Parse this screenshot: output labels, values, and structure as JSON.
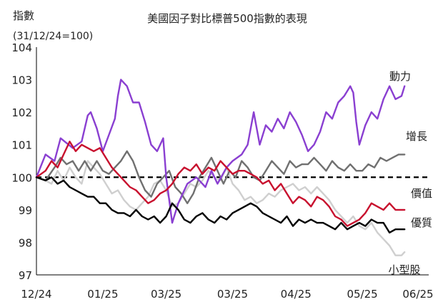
{
  "chart_data": {
    "type": "line",
    "title": "美國因子對比標普500指數的表現",
    "ylabel": "指數",
    "ylabel_sub": "(31/12/24=100)",
    "ylim": [
      97,
      104
    ],
    "yticks": [
      "97",
      "98",
      "99",
      "100",
      "101",
      "102",
      "103",
      "104"
    ],
    "x_range": [
      0,
      130
    ],
    "xticks": [
      {
        "label": "12/24",
        "x": 0
      },
      {
        "label": "01/25",
        "x": 22
      },
      {
        "label": "03/25",
        "x": 43
      },
      {
        "label": "03/25",
        "x": 65
      },
      {
        "label": "04/25",
        "x": 86
      },
      {
        "label": "05/25",
        "x": 108
      },
      {
        "label": "06/25",
        "x": 130
      }
    ],
    "reference_line": {
      "y": 100,
      "style": "dashed",
      "color": "#000000"
    },
    "grid": false,
    "series": [
      {
        "name": "動力",
        "color": "#8a3fd1",
        "points": [
          [
            0,
            100
          ],
          [
            3,
            100.7
          ],
          [
            6,
            100.5
          ],
          [
            8,
            101.2
          ],
          [
            12,
            100.9
          ],
          [
            15,
            101.1
          ],
          [
            17,
            101.9
          ],
          [
            18,
            102
          ],
          [
            20,
            101.5
          ],
          [
            22,
            100.8
          ],
          [
            24,
            101.3
          ],
          [
            26,
            101.8
          ],
          [
            27,
            102.5
          ],
          [
            28,
            103
          ],
          [
            30,
            102.8
          ],
          [
            32,
            102.3
          ],
          [
            34,
            102.3
          ],
          [
            36,
            101.7
          ],
          [
            38,
            101
          ],
          [
            40,
            100.8
          ],
          [
            42,
            101.2
          ],
          [
            43,
            100
          ],
          [
            45,
            98.6
          ],
          [
            47,
            99.2
          ],
          [
            50,
            99.8
          ],
          [
            53,
            100
          ],
          [
            56,
            99.7
          ],
          [
            58,
            100.2
          ],
          [
            60,
            99.8
          ],
          [
            63,
            100.3
          ],
          [
            65,
            100.5
          ],
          [
            68,
            100.7
          ],
          [
            70,
            101
          ],
          [
            72,
            102
          ],
          [
            74,
            101
          ],
          [
            76,
            101.6
          ],
          [
            78,
            101.4
          ],
          [
            80,
            101.8
          ],
          [
            82,
            101.5
          ],
          [
            84,
            102
          ],
          [
            86,
            101.7
          ],
          [
            88,
            101.3
          ],
          [
            90,
            100.8
          ],
          [
            92,
            101
          ],
          [
            94,
            101.4
          ],
          [
            96,
            102
          ],
          [
            98,
            101.8
          ],
          [
            100,
            102.3
          ],
          [
            102,
            102.5
          ],
          [
            104,
            102.8
          ],
          [
            105,
            102.6
          ],
          [
            106,
            101.7
          ],
          [
            107,
            101
          ],
          [
            109,
            101.6
          ],
          [
            111,
            102
          ],
          [
            113,
            101.8
          ],
          [
            115,
            102.4
          ],
          [
            117,
            102.8
          ],
          [
            119,
            102.4
          ],
          [
            121,
            102.5
          ],
          [
            122,
            102.8
          ]
        ]
      },
      {
        "name": "增長",
        "color": "#707070",
        "points": [
          [
            0,
            100
          ],
          [
            3,
            99.9
          ],
          [
            6,
            100.3
          ],
          [
            8,
            100.6
          ],
          [
            10,
            100.4
          ],
          [
            12,
            100.5
          ],
          [
            14,
            100.2
          ],
          [
            16,
            100.5
          ],
          [
            18,
            100.2
          ],
          [
            20,
            100.5
          ],
          [
            22,
            100.2
          ],
          [
            24,
            100.1
          ],
          [
            26,
            100.3
          ],
          [
            28,
            100.5
          ],
          [
            30,
            100.8
          ],
          [
            32,
            100.5
          ],
          [
            34,
            100
          ],
          [
            36,
            99.6
          ],
          [
            38,
            99.4
          ],
          [
            40,
            99.8
          ],
          [
            42,
            100
          ],
          [
            44,
            100.2
          ],
          [
            46,
            99.7
          ],
          [
            48,
            99.5
          ],
          [
            50,
            99.2
          ],
          [
            52,
            99.5
          ],
          [
            54,
            100
          ],
          [
            56,
            100.3
          ],
          [
            58,
            100.6
          ],
          [
            60,
            100.2
          ],
          [
            62,
            99.8
          ],
          [
            64,
            100.2
          ],
          [
            66,
            100
          ],
          [
            68,
            100.5
          ],
          [
            70,
            100.3
          ],
          [
            72,
            100
          ],
          [
            74,
            99.9
          ],
          [
            76,
            100.2
          ],
          [
            78,
            100.5
          ],
          [
            80,
            100.3
          ],
          [
            82,
            100.1
          ],
          [
            84,
            100.5
          ],
          [
            86,
            100.3
          ],
          [
            88,
            100.4
          ],
          [
            90,
            100.4
          ],
          [
            92,
            100.6
          ],
          [
            94,
            100.4
          ],
          [
            96,
            100.2
          ],
          [
            98,
            100.5
          ],
          [
            100,
            100.3
          ],
          [
            102,
            100.2
          ],
          [
            104,
            100.4
          ],
          [
            106,
            100.2
          ],
          [
            108,
            100.2
          ],
          [
            110,
            100.4
          ],
          [
            112,
            100.3
          ],
          [
            114,
            100.6
          ],
          [
            116,
            100.5
          ],
          [
            118,
            100.6
          ],
          [
            120,
            100.7
          ],
          [
            122,
            100.7
          ]
        ]
      },
      {
        "name": "價值",
        "color": "#c8102e",
        "points": [
          [
            0,
            100
          ],
          [
            3,
            100.2
          ],
          [
            5,
            100.5
          ],
          [
            7,
            100.3
          ],
          [
            9,
            100.7
          ],
          [
            11,
            101.1
          ],
          [
            13,
            100.8
          ],
          [
            15,
            101
          ],
          [
            17,
            100.9
          ],
          [
            19,
            100.8
          ],
          [
            21,
            100.9
          ],
          [
            23,
            100.6
          ],
          [
            25,
            100.3
          ],
          [
            27,
            100.1
          ],
          [
            29,
            99.9
          ],
          [
            31,
            99.7
          ],
          [
            33,
            99.6
          ],
          [
            35,
            99.4
          ],
          [
            37,
            99.2
          ],
          [
            39,
            99.3
          ],
          [
            41,
            99.5
          ],
          [
            43,
            99.6
          ],
          [
            45,
            99.8
          ],
          [
            47,
            100.1
          ],
          [
            49,
            100.3
          ],
          [
            51,
            100.2
          ],
          [
            53,
            100.4
          ],
          [
            55,
            100.1
          ],
          [
            57,
            100.3
          ],
          [
            59,
            100.2
          ],
          [
            61,
            100.5
          ],
          [
            63,
            100.3
          ],
          [
            65,
            100.1
          ],
          [
            67,
            100.2
          ],
          [
            69,
            100.2
          ],
          [
            71,
            100.1
          ],
          [
            73,
            100
          ],
          [
            75,
            99.8
          ],
          [
            77,
            99.9
          ],
          [
            79,
            99.6
          ],
          [
            81,
            99.8
          ],
          [
            83,
            99.5
          ],
          [
            85,
            99.2
          ],
          [
            87,
            99.4
          ],
          [
            89,
            99.3
          ],
          [
            91,
            99.1
          ],
          [
            93,
            99.4
          ],
          [
            95,
            99.3
          ],
          [
            97,
            99.1
          ],
          [
            99,
            98.8
          ],
          [
            101,
            98.7
          ],
          [
            103,
            98.5
          ],
          [
            105,
            98.6
          ],
          [
            107,
            98.7
          ],
          [
            109,
            98.9
          ],
          [
            111,
            99.2
          ],
          [
            113,
            99.1
          ],
          [
            115,
            99
          ],
          [
            117,
            99.2
          ],
          [
            119,
            99
          ],
          [
            121,
            99
          ],
          [
            122,
            99
          ]
        ]
      },
      {
        "name": "優質",
        "color": "#000000",
        "points": [
          [
            0,
            100
          ],
          [
            3,
            99.9
          ],
          [
            5,
            100
          ],
          [
            7,
            99.8
          ],
          [
            9,
            99.9
          ],
          [
            11,
            99.7
          ],
          [
            13,
            99.6
          ],
          [
            15,
            99.5
          ],
          [
            17,
            99.4
          ],
          [
            19,
            99.4
          ],
          [
            21,
            99.2
          ],
          [
            23,
            99.2
          ],
          [
            25,
            99
          ],
          [
            27,
            98.9
          ],
          [
            29,
            98.9
          ],
          [
            31,
            98.8
          ],
          [
            33,
            99
          ],
          [
            35,
            98.8
          ],
          [
            37,
            98.7
          ],
          [
            39,
            98.8
          ],
          [
            41,
            98.6
          ],
          [
            43,
            98.8
          ],
          [
            45,
            99.2
          ],
          [
            47,
            99
          ],
          [
            49,
            98.7
          ],
          [
            51,
            98.6
          ],
          [
            53,
            98.8
          ],
          [
            55,
            98.9
          ],
          [
            57,
            98.7
          ],
          [
            59,
            98.6
          ],
          [
            61,
            98.8
          ],
          [
            63,
            98.7
          ],
          [
            65,
            98.9
          ],
          [
            67,
            99
          ],
          [
            69,
            99.1
          ],
          [
            71,
            99.2
          ],
          [
            73,
            99.1
          ],
          [
            75,
            98.9
          ],
          [
            77,
            98.8
          ],
          [
            79,
            98.7
          ],
          [
            81,
            98.6
          ],
          [
            83,
            98.8
          ],
          [
            85,
            98.5
          ],
          [
            87,
            98.7
          ],
          [
            89,
            98.6
          ],
          [
            91,
            98.7
          ],
          [
            93,
            98.6
          ],
          [
            95,
            98.6
          ],
          [
            97,
            98.5
          ],
          [
            99,
            98.4
          ],
          [
            101,
            98.6
          ],
          [
            103,
            98.4
          ],
          [
            105,
            98.5
          ],
          [
            107,
            98.6
          ],
          [
            109,
            98.5
          ],
          [
            111,
            98.7
          ],
          [
            113,
            98.6
          ],
          [
            115,
            98.6
          ],
          [
            117,
            98.3
          ],
          [
            119,
            98.4
          ],
          [
            122,
            98.4
          ]
        ]
      },
      {
        "name": "小型股",
        "color": "#cfcfcf",
        "points": [
          [
            0,
            100
          ],
          [
            3,
            99.9
          ],
          [
            5,
            99.8
          ],
          [
            7,
            100.2
          ],
          [
            9,
            99.9
          ],
          [
            11,
            100.3
          ],
          [
            13,
            100
          ],
          [
            15,
            99.8
          ],
          [
            17,
            100.5
          ],
          [
            19,
            100.3
          ],
          [
            21,
            100.1
          ],
          [
            23,
            99.8
          ],
          [
            25,
            99.5
          ],
          [
            27,
            99.6
          ],
          [
            29,
            99.3
          ],
          [
            31,
            99.1
          ],
          [
            33,
            99
          ],
          [
            35,
            99.2
          ],
          [
            37,
            99.4
          ],
          [
            39,
            99.8
          ],
          [
            41,
            99.9
          ],
          [
            43,
            99.6
          ],
          [
            45,
            99.1
          ],
          [
            47,
            99.2
          ],
          [
            49,
            99.5
          ],
          [
            51,
            99.8
          ],
          [
            53,
            99.7
          ],
          [
            55,
            99.9
          ],
          [
            57,
            100.2
          ],
          [
            59,
            100
          ],
          [
            61,
            99.9
          ],
          [
            63,
            100.3
          ],
          [
            65,
            99.8
          ],
          [
            67,
            99.6
          ],
          [
            69,
            99.3
          ],
          [
            71,
            99.4
          ],
          [
            73,
            99.2
          ],
          [
            75,
            99.3
          ],
          [
            77,
            99.5
          ],
          [
            79,
            99.4
          ],
          [
            81,
            99.6
          ],
          [
            83,
            99.7
          ],
          [
            85,
            99.8
          ],
          [
            87,
            99.6
          ],
          [
            89,
            99.7
          ],
          [
            91,
            99.5
          ],
          [
            93,
            99.7
          ],
          [
            95,
            99.5
          ],
          [
            97,
            99.3
          ],
          [
            99,
            99
          ],
          [
            101,
            98.8
          ],
          [
            103,
            98.6
          ],
          [
            105,
            98.8
          ],
          [
            107,
            98.5
          ],
          [
            109,
            98.4
          ],
          [
            111,
            98.6
          ],
          [
            113,
            98.3
          ],
          [
            115,
            98.1
          ],
          [
            117,
            97.9
          ],
          [
            119,
            97.6
          ],
          [
            121,
            97.6
          ],
          [
            122,
            97.7
          ]
        ]
      }
    ]
  }
}
